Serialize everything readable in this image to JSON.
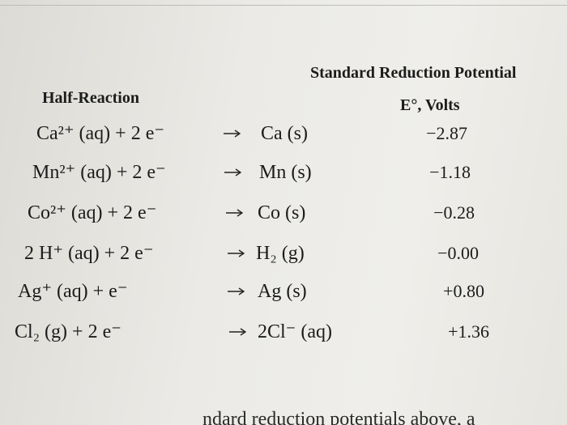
{
  "table": {
    "group_header": "Standard Reduction Potential",
    "headers": [
      "Half-Reaction",
      "E°, Volts"
    ],
    "rows": [
      [
        "Ca²⁺ (aq) + 2 e⁻",
        "Ca (s)",
        "−2.87"
      ],
      [
        "Mn²⁺ (aq) + 2 e⁻",
        "Mn (s)",
        "−1.18"
      ],
      [
        "Co²⁺ (aq) + 2 e⁻",
        "Co (s)",
        "−0.28"
      ],
      [
        "2 H⁺ (aq) + 2 e⁻",
        "H₂ (g)",
        "−0.00"
      ],
      [
        "Ag⁺ (aq) + e⁻",
        "Ag (s)",
        "+0.80"
      ],
      [
        "Cl₂ (g) + 2 e⁻",
        "2Cl⁻ (aq)",
        "+1.36"
      ]
    ]
  },
  "footer": "ndard reduction potentials above, a"
}
